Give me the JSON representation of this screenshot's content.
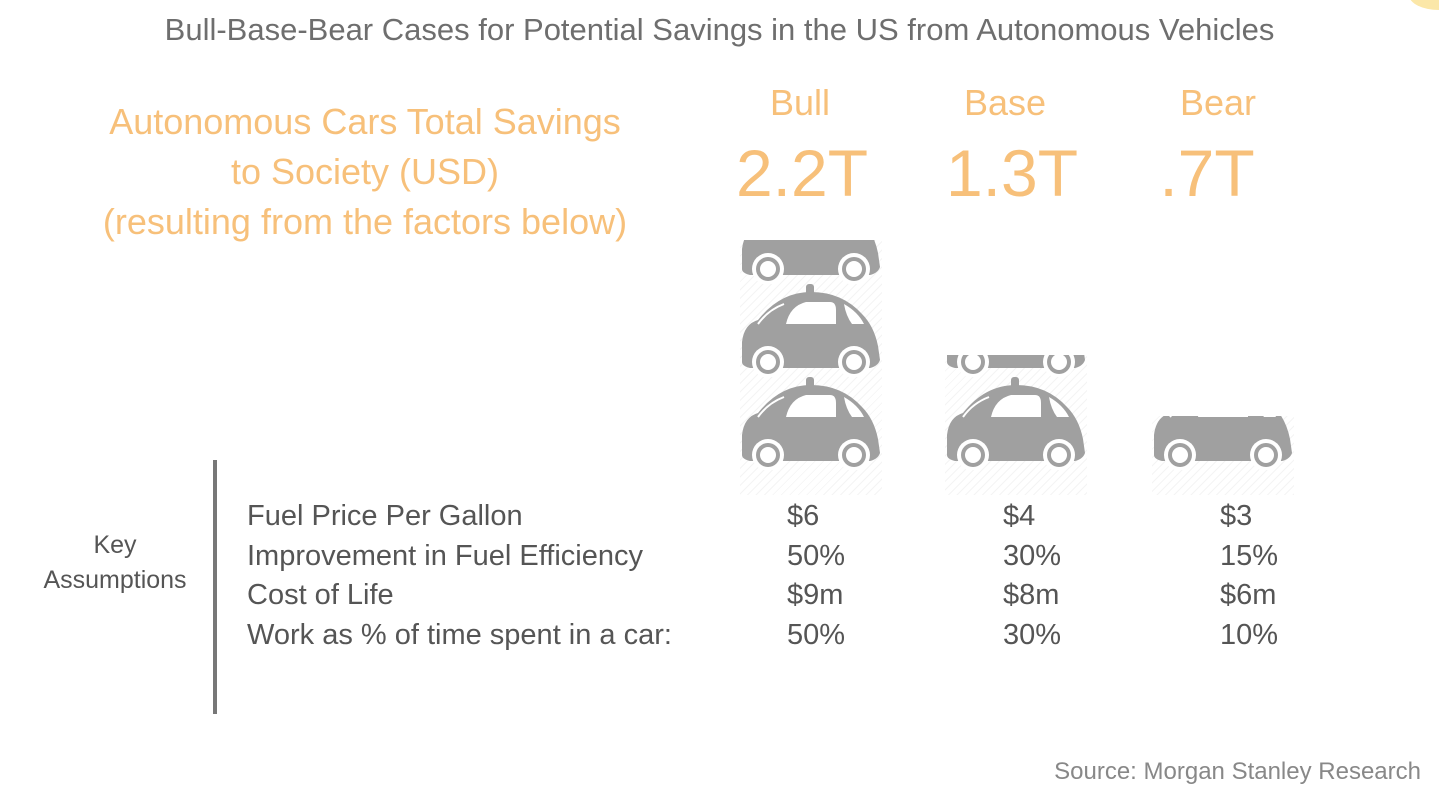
{
  "title": "Bull-Base-Bear Cases for Potential Savings in the US from Autonomous Vehicles",
  "subtitle": [
    "Autonomous Cars Total Savings",
    "to Society (USD)",
    "(resulting from the factors below)"
  ],
  "cases": [
    {
      "name": "Bull",
      "total": "2.2T",
      "cars": 2.2
    },
    {
      "name": "Base",
      "total": "1.3T",
      "cars": 1.3
    },
    {
      "name": "Bear",
      "total": ".7T",
      "cars": 0.7
    }
  ],
  "key_assumptions_label": [
    "Key",
    "Assumptions"
  ],
  "rows": [
    {
      "label": "Fuel Price Per Gallon",
      "values": [
        "$6",
        "$4",
        "$3"
      ]
    },
    {
      "label": "Improvement in Fuel Efficiency",
      "values": [
        "50%",
        "30%",
        "15%"
      ]
    },
    {
      "label": "Cost of Life",
      "values": [
        "$9m",
        "$8m",
        "$6m"
      ]
    },
    {
      "label": "Work as % of time spent in a car:",
      "values": [
        "50%",
        "30%",
        "10%"
      ]
    }
  ],
  "source": "Source: Morgan Stanley Research",
  "colors": {
    "accent": "#f7c07a",
    "car": "#a0a0a0",
    "text": "#555555"
  }
}
